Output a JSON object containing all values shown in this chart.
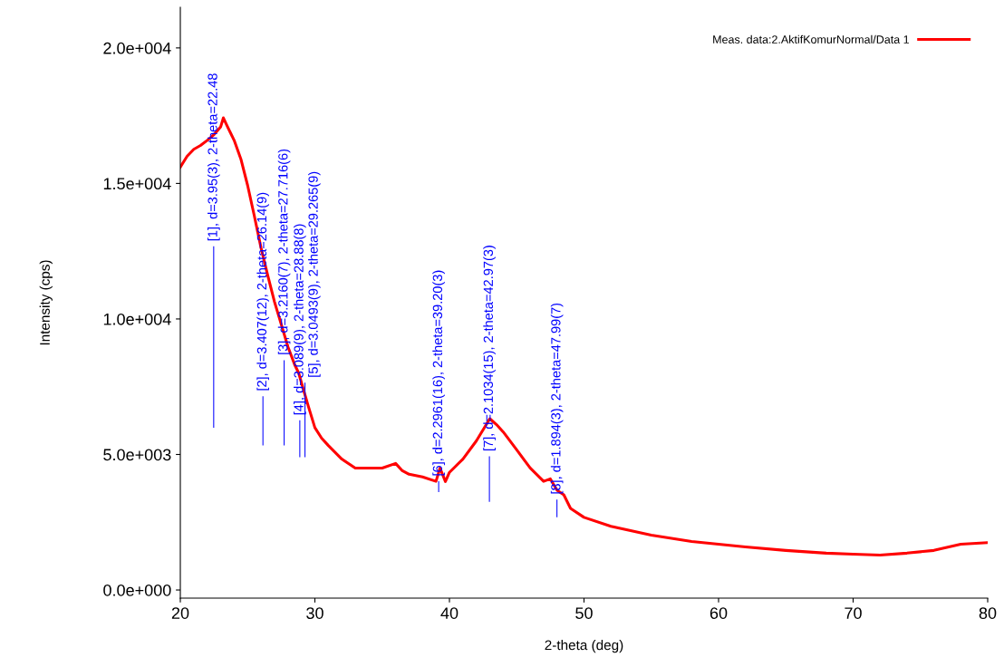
{
  "chart_data": {
    "type": "line",
    "xlabel": "2-theta (deg)",
    "ylabel": "Intensity (cps)",
    "xlim": [
      20,
      80
    ],
    "xticks": [
      20,
      30,
      40,
      50,
      60,
      70,
      80
    ],
    "ylim": [
      -300,
      21500
    ],
    "yticks": [
      {
        "value": 0,
        "label": "0.0e+000"
      },
      {
        "value": 5000,
        "label": "5.0e+003"
      },
      {
        "value": 10000,
        "label": "1.0e+004"
      },
      {
        "value": 15000,
        "label": "1.5e+004"
      },
      {
        "value": 20000,
        "label": "2.0e+004"
      }
    ],
    "grid": false,
    "legend": "top right",
    "marker": "none",
    "line_style": "solid",
    "series": [
      {
        "name": "Meas. data:2.AktifKomurNormal/Data 1",
        "color": "#ff0000",
        "x": [
          20,
          20.5,
          21,
          21.5,
          22,
          22.5,
          23,
          23.2,
          23.5,
          24,
          24.5,
          25,
          25.5,
          26,
          26.5,
          27,
          27.5,
          28,
          28.5,
          28.8,
          29,
          29.5,
          30,
          30.5,
          31,
          32,
          33,
          34,
          35,
          36,
          36.5,
          37,
          38,
          39,
          39.3,
          39.7,
          40,
          41,
          42,
          43,
          43.5,
          44,
          45,
          46,
          47,
          47.5,
          48,
          48.5,
          49,
          50,
          52,
          55,
          58,
          60,
          62,
          65,
          68,
          70,
          72,
          74,
          76,
          78,
          80
        ],
        "values": [
          15600,
          16000,
          16260,
          16400,
          16590,
          16800,
          17090,
          17420,
          17100,
          16590,
          15900,
          14930,
          13800,
          12620,
          11600,
          10630,
          9800,
          8970,
          8310,
          8000,
          7650,
          6800,
          5990,
          5600,
          5330,
          4830,
          4500,
          4500,
          4500,
          4670,
          4400,
          4270,
          4170,
          4010,
          4500,
          4000,
          4340,
          4830,
          5500,
          6320,
          6100,
          5830,
          5170,
          4500,
          4010,
          4100,
          3680,
          3510,
          3010,
          2680,
          2350,
          2020,
          1790,
          1690,
          1590,
          1460,
          1360,
          1320,
          1290,
          1360,
          1460,
          1690,
          1750
        ]
      },
      {
        "type": "bar",
        "color": "#0000ff",
        "x": [
          22.48,
          26.14,
          27.716,
          28.88,
          29.265,
          39.2,
          42.97,
          47.99
        ],
        "base": [
          5990,
          5330,
          5330,
          4900,
          4900,
          3610,
          3250,
          2680
        ],
        "values": [
          6690,
          1820,
          3150,
          1360,
          2750,
          400,
          1680,
          660
        ]
      }
    ],
    "annotations": [
      {
        "text": "[1], d=3.95(3), 2-theta=22.48",
        "x": 22.48,
        "y": 12680
      },
      {
        "text": "[2], d=3.407(12), 2-theta=26.14(9)",
        "x": 26.14,
        "y": 7150
      },
      {
        "text": "[3], d=3.2160(7), 2-theta=27.716(6)",
        "x": 27.716,
        "y": 8480
      },
      {
        "text": "[4], d=3.089(9), 2-theta=28.88(8)",
        "x": 28.88,
        "y": 6260
      },
      {
        "text": "[5], d=3.0493(9), 2-theta=29.265(9)",
        "x": 29.265,
        "y": 7650
      },
      {
        "text": "[6], d=2.2961(16), 2-theta=39.20(3)",
        "x": 39.2,
        "y": 4010
      },
      {
        "text": "[7], d=2.1034(15), 2-theta=42.97(3)",
        "x": 42.97,
        "y": 4930
      },
      {
        "text": "[8], d=1.894(3), 2-theta=47.99(7)",
        "x": 47.99,
        "y": 3340
      }
    ]
  }
}
